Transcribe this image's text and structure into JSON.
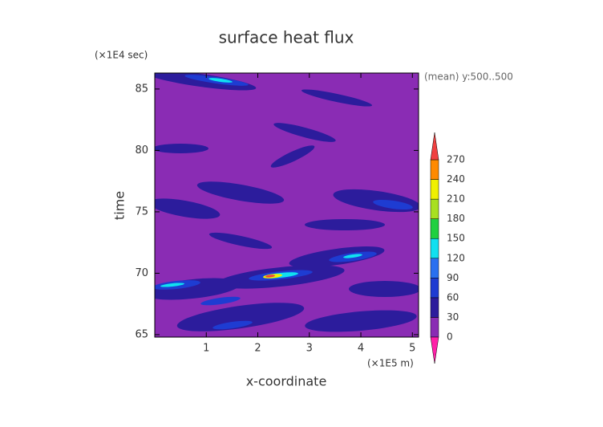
{
  "chart_data": {
    "type": "contour",
    "title": "surface heat flux",
    "subtitle": "(mean) y:500..500",
    "x_label": "x-coordinate",
    "x_unit": "(×1E5 m)",
    "y_label": "time",
    "y_unit": "(×1E4 sec)",
    "xlim": [
      0,
      5.12
    ],
    "xticks": [
      1,
      2,
      3,
      4,
      5
    ],
    "ylim": [
      64.8,
      86.3
    ],
    "yticks": [
      65,
      70,
      75,
      80,
      85
    ],
    "colorbar": {
      "levels": [
        0,
        30,
        60,
        90,
        120,
        150,
        180,
        210,
        240,
        270
      ],
      "under_color": "#ff20a8",
      "colors": [
        "#8a2cb4",
        "#2c1c9c",
        "#1e3cd2",
        "#2a70f0",
        "#10e0f0",
        "#20d040",
        "#a8e020",
        "#f0f000",
        "#ff8a00"
      ],
      "over_color": "#f04040"
    }
  }
}
